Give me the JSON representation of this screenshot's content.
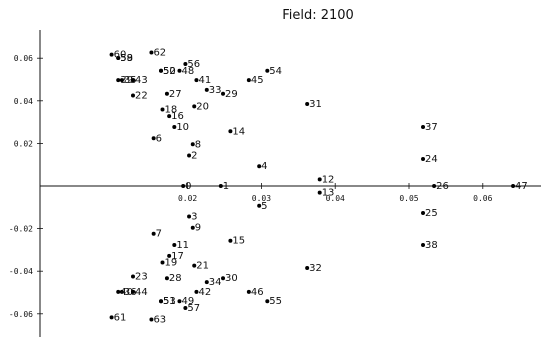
{
  "chart_data": {
    "type": "scatter",
    "title": "Field: 2100",
    "xlabel": "",
    "ylabel": "",
    "xlim": [
      0.0,
      0.065
    ],
    "ylim": [
      -0.065,
      0.065
    ],
    "grid": false,
    "x_ticks": [
      {
        "value": 0.02,
        "label": "0.02"
      },
      {
        "value": 0.03,
        "label": "0.03"
      },
      {
        "value": 0.04,
        "label": "0.04"
      },
      {
        "value": 0.05,
        "label": "0.05"
      },
      {
        "value": 0.06,
        "label": "0.06"
      }
    ],
    "y_ticks": [
      {
        "value": 0.06,
        "label": "0.06"
      },
      {
        "value": 0.04,
        "label": "0.04"
      },
      {
        "value": 0.02,
        "label": "0.02"
      },
      {
        "value": -0.02,
        "label": "-0.02"
      },
      {
        "value": -0.04,
        "label": "-0.04"
      },
      {
        "value": -0.06,
        "label": "-0.06"
      }
    ],
    "points": [
      {
        "label": "0",
        "x": 0.0194,
        "y": 0.0
      },
      {
        "label": "1",
        "x": 0.0245,
        "y": 0.0
      },
      {
        "label": "2",
        "x": 0.0202,
        "y": 0.0143
      },
      {
        "label": "3",
        "x": 0.0202,
        "y": -0.0143
      },
      {
        "label": "4",
        "x": 0.0297,
        "y": 0.0093
      },
      {
        "label": "5",
        "x": 0.0297,
        "y": -0.0093
      },
      {
        "label": "6",
        "x": 0.0154,
        "y": 0.0224
      },
      {
        "label": "7",
        "x": 0.0154,
        "y": -0.0224
      },
      {
        "label": "8",
        "x": 0.0207,
        "y": 0.0196
      },
      {
        "label": "9",
        "x": 0.0207,
        "y": -0.0196
      },
      {
        "label": "10",
        "x": 0.0182,
        "y": 0.0277
      },
      {
        "label": "11",
        "x": 0.0182,
        "y": -0.0277
      },
      {
        "label": "12",
        "x": 0.0379,
        "y": 0.0031
      },
      {
        "label": "13",
        "x": 0.0379,
        "y": -0.0031
      },
      {
        "label": "14",
        "x": 0.0258,
        "y": 0.0257
      },
      {
        "label": "15",
        "x": 0.0258,
        "y": -0.0257
      },
      {
        "label": "16",
        "x": 0.0175,
        "y": 0.0328
      },
      {
        "label": "17",
        "x": 0.0175,
        "y": -0.0328
      },
      {
        "label": "18",
        "x": 0.0166,
        "y": 0.0359
      },
      {
        "label": "19",
        "x": 0.0166,
        "y": -0.0359
      },
      {
        "label": "20",
        "x": 0.0209,
        "y": 0.0374
      },
      {
        "label": "21",
        "x": 0.0209,
        "y": -0.0374
      },
      {
        "label": "22",
        "x": 0.0126,
        "y": 0.0425
      },
      {
        "label": "23",
        "x": 0.0126,
        "y": -0.0425
      },
      {
        "label": "24",
        "x": 0.0519,
        "y": 0.0127
      },
      {
        "label": "25",
        "x": 0.0519,
        "y": -0.0127
      },
      {
        "label": "26",
        "x": 0.0534,
        "y": 0.0
      },
      {
        "label": "27",
        "x": 0.0172,
        "y": 0.0433
      },
      {
        "label": "28",
        "x": 0.0172,
        "y": -0.0433
      },
      {
        "label": "29",
        "x": 0.0248,
        "y": 0.0433
      },
      {
        "label": "30",
        "x": 0.0248,
        "y": -0.0433
      },
      {
        "label": "31",
        "x": 0.0362,
        "y": 0.0385
      },
      {
        "label": "32",
        "x": 0.0362,
        "y": -0.0385
      },
      {
        "label": "33",
        "x": 0.0226,
        "y": 0.0451
      },
      {
        "label": "34",
        "x": 0.0226,
        "y": -0.0451
      },
      {
        "label": "35",
        "x": 0.0111,
        "y": 0.0497
      },
      {
        "label": "36",
        "x": 0.0111,
        "y": -0.0497
      },
      {
        "label": "37",
        "x": 0.0519,
        "y": 0.0277
      },
      {
        "label": "38",
        "x": 0.0519,
        "y": -0.0277
      },
      {
        "label": "39",
        "x": 0.0106,
        "y": 0.0497
      },
      {
        "label": "40",
        "x": 0.0106,
        "y": -0.0497
      },
      {
        "label": "41",
        "x": 0.0212,
        "y": 0.0497
      },
      {
        "label": "42",
        "x": 0.0212,
        "y": -0.0497
      },
      {
        "label": "43",
        "x": 0.0126,
        "y": 0.0497
      },
      {
        "label": "44",
        "x": 0.0126,
        "y": -0.0497
      },
      {
        "label": "45",
        "x": 0.0283,
        "y": 0.0497
      },
      {
        "label": "46",
        "x": 0.0283,
        "y": -0.0497
      },
      {
        "label": "47",
        "x": 0.0641,
        "y": 0.0
      },
      {
        "label": "48",
        "x": 0.0189,
        "y": 0.0541
      },
      {
        "label": "49",
        "x": 0.0189,
        "y": -0.0541
      },
      {
        "label": "50",
        "x": 0.0164,
        "y": 0.0541
      },
      {
        "label": "51",
        "x": 0.0164,
        "y": -0.0541
      },
      {
        "label": "52",
        "x": 0.0164,
        "y": 0.0541
      },
      {
        "label": "53",
        "x": 0.0164,
        "y": -0.0541
      },
      {
        "label": "54",
        "x": 0.0308,
        "y": 0.0541
      },
      {
        "label": "55",
        "x": 0.0308,
        "y": -0.0541
      },
      {
        "label": "56",
        "x": 0.0197,
        "y": 0.0573
      },
      {
        "label": "57",
        "x": 0.0197,
        "y": -0.0573
      },
      {
        "label": "58",
        "x": 0.0106,
        "y": 0.0601
      },
      {
        "label": "59",
        "x": 0.0106,
        "y": 0.0601
      },
      {
        "label": "60",
        "x": 0.0097,
        "y": 0.0617
      },
      {
        "label": "61",
        "x": 0.0097,
        "y": -0.0617
      },
      {
        "label": "62",
        "x": 0.0151,
        "y": 0.0627
      },
      {
        "label": "63",
        "x": 0.0151,
        "y": -0.0627
      }
    ]
  }
}
